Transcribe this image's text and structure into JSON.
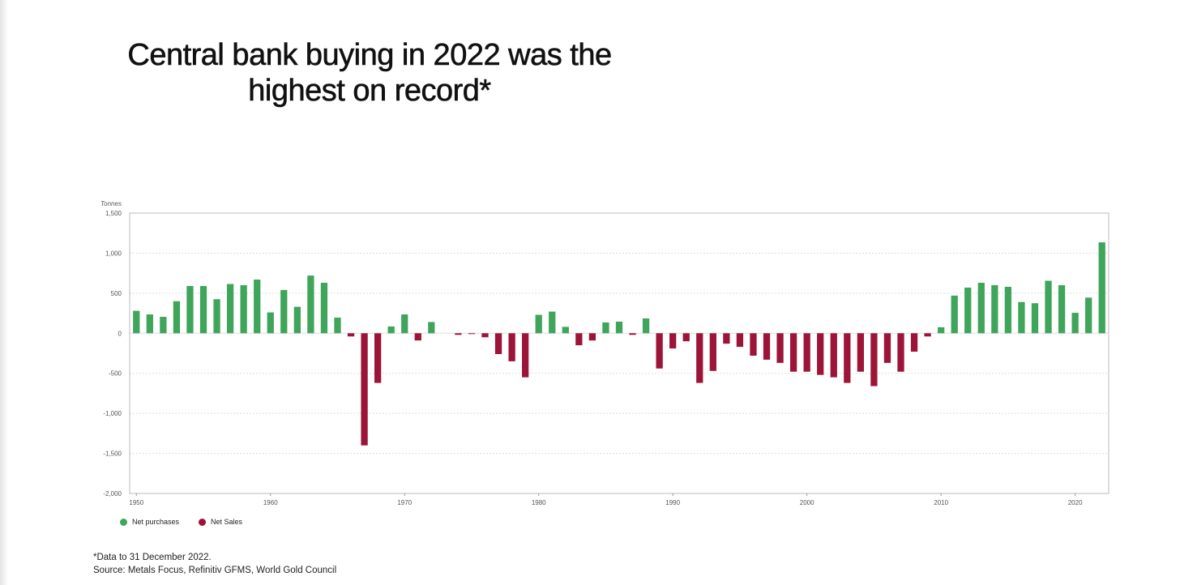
{
  "title": {
    "line1": "Central bank buying in 2022 was the",
    "line2": "highest on record*"
  },
  "colors": {
    "purchases": "#3fa55a",
    "sales": "#9c1438",
    "grid": "#dddddd",
    "axis": "#999999",
    "tick_text": "#555555"
  },
  "footnote": {
    "line1": "*Data to 31 December 2022.",
    "line2": "Source: Metals Focus, Refinitiv GFMS, World Gold Council"
  },
  "chart_data": {
    "type": "bar",
    "title": "Central bank buying in 2022 was the highest on record*",
    "ylabel": "Tonnes",
    "xlabel": "",
    "ylim": [
      -2000,
      1500
    ],
    "yticks": [
      1500,
      1000,
      500,
      0,
      -500,
      -1000,
      -1500,
      -2000
    ],
    "ytick_labels": [
      "1,500",
      "1,000",
      "500",
      "0",
      "-500",
      "-1,000",
      "-1,500",
      "-2,000"
    ],
    "xlim": [
      1949.5,
      2022.5
    ],
    "xticks": [
      1950,
      1960,
      1970,
      1980,
      1990,
      2000,
      2010,
      2020
    ],
    "xtick_labels": [
      "1950",
      "1960",
      "1970",
      "1980",
      "1990",
      "2000",
      "2010",
      "2020"
    ],
    "grid": true,
    "legend": [
      {
        "name": "Net purchases",
        "color_key": "purchases"
      },
      {
        "name": "Net Sales",
        "color_key": "sales"
      }
    ],
    "legend_position": "bottom-left",
    "years": [
      1950,
      1951,
      1952,
      1953,
      1954,
      1955,
      1956,
      1957,
      1958,
      1959,
      1960,
      1961,
      1962,
      1963,
      1964,
      1965,
      1966,
      1967,
      1968,
      1969,
      1970,
      1971,
      1972,
      1973,
      1974,
      1975,
      1976,
      1977,
      1978,
      1979,
      1980,
      1981,
      1982,
      1983,
      1984,
      1985,
      1986,
      1987,
      1988,
      1989,
      1990,
      1991,
      1992,
      1993,
      1994,
      1995,
      1996,
      1997,
      1998,
      1999,
      2000,
      2001,
      2002,
      2003,
      2004,
      2005,
      2006,
      2007,
      2008,
      2009,
      2010,
      2011,
      2012,
      2013,
      2014,
      2015,
      2016,
      2017,
      2018,
      2019,
      2020,
      2021,
      2022
    ],
    "values": [
      280,
      235,
      205,
      400,
      590,
      590,
      425,
      615,
      600,
      670,
      260,
      540,
      330,
      720,
      630,
      195,
      -40,
      -1400,
      -620,
      85,
      235,
      -90,
      140,
      0,
      -20,
      -10,
      -50,
      -260,
      -350,
      -550,
      230,
      270,
      80,
      -150,
      -90,
      135,
      145,
      -20,
      185,
      -440,
      -190,
      -100,
      -620,
      -470,
      -130,
      -170,
      -280,
      -330,
      -370,
      -480,
      -480,
      -520,
      -550,
      -620,
      -480,
      -660,
      -370,
      -480,
      -230,
      -40,
      75,
      470,
      570,
      630,
      600,
      580,
      390,
      375,
      655,
      600,
      255,
      445,
      1135
    ]
  }
}
